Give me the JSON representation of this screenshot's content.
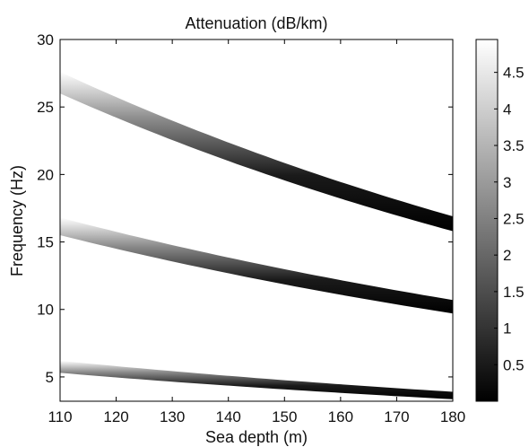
{
  "chart_data": {
    "type": "heatmap",
    "title": "Attenuation (dB/km)",
    "xlabel": "Sea depth (m)",
    "ylabel": "Frequency (Hz)",
    "xlim": [
      110,
      180
    ],
    "ylim": [
      3.2,
      30
    ],
    "xticks": [
      110,
      120,
      130,
      140,
      150,
      160,
      170,
      180
    ],
    "yticks": [
      5,
      10,
      15,
      20,
      25,
      30
    ],
    "colorbar": {
      "range": [
        0,
        4.95
      ],
      "ticks": [
        0.5,
        1,
        1.5,
        2,
        2.5,
        3,
        3.5,
        4,
        4.5
      ],
      "colormap": "gray"
    },
    "background_value": 4.95,
    "bands": [
      {
        "x": [
          110,
          180
        ],
        "low_edge": [
          5.3,
          3.35
        ],
        "high_edge": [
          6.2,
          3.9
        ]
      },
      {
        "x": [
          110,
          180
        ],
        "low_edge": [
          15.5,
          9.7
        ],
        "high_edge": [
          16.8,
          10.7
        ]
      },
      {
        "x": [
          110,
          180
        ],
        "low_edge": [
          26.0,
          15.8
        ],
        "high_edge": [
          27.6,
          16.9
        ]
      }
    ],
    "grid": false
  }
}
